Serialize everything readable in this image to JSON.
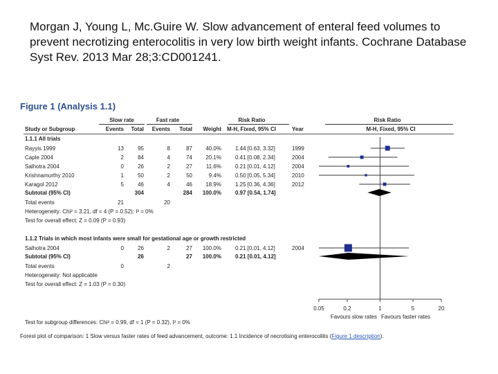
{
  "citation": "Morgan J, Young L, Mc.Guire W. Slow advancement of enteral feed volumes to prevent necrotizing enterocolitis in very low birth weight infants. Cochrane Database Syst Rev. 2013 Mar 28;3:CD001241.",
  "figure": {
    "title": "Figure 1",
    "analysis": "(Analysis 1.1)",
    "col_group_slow": "Slow rate",
    "col_group_fast": "Fast rate",
    "col_group_rr": "Risk Ratio",
    "col_group_rr_plot": "Risk Ratio",
    "col_study": "Study or Subgroup",
    "col_events1": "Events",
    "col_total1": "Total",
    "col_events2": "Events",
    "col_total2": "Total",
    "col_weight": "Weight",
    "col_method": "M-H, Fixed, 95% CI",
    "col_year": "Year",
    "col_method_plot": "M-H, Fixed, 95% CI",
    "subgroup1": {
      "heading": "1.1.1 All trials",
      "studies": [
        {
          "name": "Rayyis 1999",
          "e1": "13",
          "t1": "95",
          "e2": "8",
          "t2": "87",
          "weight": "40.0%",
          "rr": "1.44 [0.63, 3.32]",
          "year": "1999"
        },
        {
          "name": "Caple 2004",
          "e1": "2",
          "t1": "84",
          "e2": "4",
          "t2": "74",
          "weight": "20.1%",
          "rr": "0.41 [0.08, 2.34]",
          "year": "2004"
        },
        {
          "name": "Salhotra 2004",
          "e1": "0",
          "t1": "26",
          "e2": "2",
          "t2": "27",
          "weight": "11.6%",
          "rr": "0.21 [0.01, 4.12]",
          "year": "2004"
        },
        {
          "name": "Krishnamurthy 2010",
          "e1": "1",
          "t1": "50",
          "e2": "2",
          "t2": "50",
          "weight": "9.4%",
          "rr": "0.50 [0.05, 5.34]",
          "year": "2010"
        },
        {
          "name": "Karagol 2012",
          "e1": "5",
          "t1": "46",
          "e2": "4",
          "t2": "46",
          "weight": "18.9%",
          "rr": "1.25 [0.36, 4.36]",
          "year": "2012"
        }
      ],
      "subtotal_label": "Subtotal (95% CI)",
      "subtotal_t1": "304",
      "subtotal_t2": "284",
      "subtotal_weight": "100.0%",
      "subtotal_rr": "0.97 [0.54, 1.74]",
      "total_events_label": "Total events",
      "total_events1": "21",
      "total_events2": "20",
      "heterogeneity": "Heterogeneity: Chi² = 3.21, df = 4 (P = 0.52); I² = 0%",
      "overall_effect": "Test for overall effect: Z = 0.09 (P = 0.93)"
    },
    "subgroup2": {
      "heading": "1.1.2 Trials in which most infants were small for gestational age or growth restricted",
      "studies": [
        {
          "name": "Salhotra 2004",
          "e1": "0",
          "t1": "26",
          "e2": "2",
          "t2": "27",
          "weight": "100.0%",
          "rr": "0.21 [0.01, 4.12]",
          "year": "2004"
        }
      ],
      "subtotal_label": "Subtotal (95% CI)",
      "subtotal_t1": "26",
      "subtotal_t2": "27",
      "subtotal_weight": "100.0%",
      "subtotal_rr": "0.21 [0.01, 4.12]",
      "total_events_label": "Total events",
      "total_events1": "0",
      "total_events2": "2",
      "heterogeneity": "Heterogeneity: Not applicable",
      "overall_effect": "Test for overall effect: Z = 1.03 (P = 0.30)"
    },
    "axis_ticks": [
      "0.05",
      "0.2",
      "1",
      "5",
      "20"
    ],
    "favours_left": "Favours slow rates",
    "favours_right": "Favours faster rates",
    "subgroup_diff": "Test for subgroup differences: Chi² = 0.99, df = 1 (P = 0.32), I² = 0%",
    "caption_text": "Forest plot of comparison: 1 Slow versus faster rates of feed advancement, outcome: 1.1 Incidence of necrotising enterocolitis (",
    "caption_link": "Figure 1 description",
    "caption_end": ").",
    "colors": {
      "title": "#2d4f8f",
      "marker": "#1f2f8f",
      "diamond": "#000000",
      "link": "#2a55b0"
    }
  },
  "chart_data": {
    "type": "forest",
    "scale": "log",
    "xlim": [
      0.05,
      20
    ],
    "xticks": [
      0.05,
      0.2,
      1,
      5,
      20
    ],
    "subgroups": [
      {
        "name": "1.1.1 All trials",
        "studies": [
          {
            "name": "Rayyis 1999",
            "rr": 1.44,
            "lo": 0.63,
            "hi": 3.32,
            "weight": 40.0
          },
          {
            "name": "Caple 2004",
            "rr": 0.41,
            "lo": 0.08,
            "hi": 2.34,
            "weight": 20.1
          },
          {
            "name": "Salhotra 2004",
            "rr": 0.21,
            "lo": 0.01,
            "hi": 4.12,
            "weight": 11.6
          },
          {
            "name": "Krishnamurthy 2010",
            "rr": 0.5,
            "lo": 0.05,
            "hi": 5.34,
            "weight": 9.4
          },
          {
            "name": "Karagol 2012",
            "rr": 1.25,
            "lo": 0.36,
            "hi": 4.36,
            "weight": 18.9
          }
        ],
        "pooled": {
          "rr": 0.97,
          "lo": 0.54,
          "hi": 1.74
        }
      },
      {
        "name": "1.1.2 Trials in which most infants were small for gestational age or growth restricted",
        "studies": [
          {
            "name": "Salhotra 2004",
            "rr": 0.21,
            "lo": 0.01,
            "hi": 4.12,
            "weight": 100.0
          }
        ],
        "pooled": {
          "rr": 0.21,
          "lo": 0.01,
          "hi": 4.12
        }
      }
    ]
  }
}
